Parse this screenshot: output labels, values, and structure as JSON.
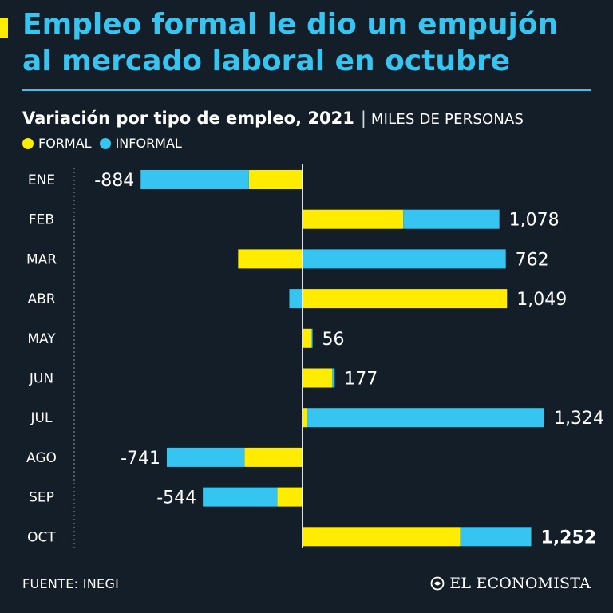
{
  "header": {
    "title": "Empleo formal le dio un empujón al mercado laboral en octubre",
    "subtitle": "Variación por tipo de empleo, 2021",
    "separator": "|",
    "unit": "MILES DE PERSONAS"
  },
  "colors": {
    "formal": "#ffec00",
    "informal": "#36c5f0",
    "background": "#141e29",
    "accent": "#ffec00"
  },
  "chart_data": {
    "type": "bar",
    "orientation": "horizontal",
    "stacked": true,
    "title": "Variación por tipo de empleo, 2021",
    "unit": "MILES DE PERSONAS",
    "categories": [
      "ENE",
      "FEB",
      "MAR",
      "ABR",
      "MAY",
      "JUN",
      "JUL",
      "AGO",
      "SEP",
      "OCT"
    ],
    "series": [
      {
        "name": "FORMAL",
        "values": [
          -292,
          552,
          -351,
          1120,
          51,
          164,
          24,
          -316,
          -137,
          864
        ]
      },
      {
        "name": "INFORMAL",
        "values": [
          -592,
          526,
          1113,
          -71,
          5,
          13,
          1300,
          -425,
          -407,
          388
        ]
      }
    ],
    "total_labels": [
      "-884",
      "1,078",
      "762",
      "1,049",
      "56",
      "177",
      "1,324",
      "-741",
      "-544",
      "1,252"
    ],
    "highlight_index": 9,
    "xlim": [
      -920,
      1420
    ],
    "legend_position": "top-left"
  },
  "legend": {
    "formal_label": "FORMAL",
    "informal_label": "INFORMAL"
  },
  "footer": {
    "source": "FUENTE: INEGI",
    "brand": "EL ECONOMISTA"
  }
}
